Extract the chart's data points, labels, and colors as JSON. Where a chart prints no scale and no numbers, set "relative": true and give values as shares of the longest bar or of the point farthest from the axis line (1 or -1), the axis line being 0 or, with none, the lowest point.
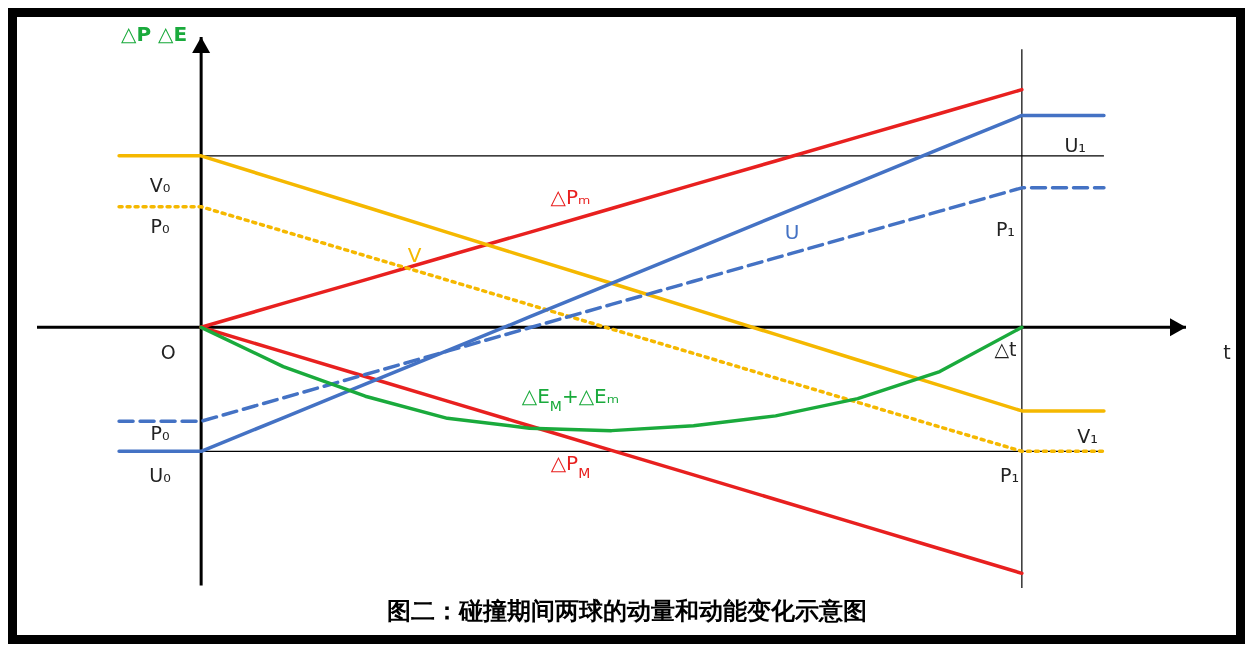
{
  "chart_data": {
    "type": "line",
    "relative": true,
    "title": "图二：碰撞期间两球的动量和动能变化示意图",
    "ylabel": "△P  △E",
    "tick_labels": false,
    "marker": "none",
    "categories": [
      null,
      null,
      null,
      null,
      null,
      null,
      null,
      null,
      null,
      null,
      null,
      null,
      null
    ],
    "series": [
      {
        "name": "△Pₘ",
        "color": "#e8201f",
        "line_style": "solid",
        "values": [
          null,
          0,
          0.097,
          0.193,
          0.29,
          0.386,
          0.483,
          0.58,
          0.676,
          0.773,
          0.869,
          0.966,
          null
        ]
      },
      {
        "name": "△P$_{M}$",
        "color": "#e8201f",
        "line_style": "solid",
        "values": [
          null,
          0,
          -0.1,
          -0.2,
          -0.3,
          -0.4,
          -0.5,
          -0.6,
          -0.7,
          -0.8,
          -0.9,
          -1,
          null
        ]
      },
      {
        "color": "#f5b800",
        "line_style": "solid",
        "values": [
          0.697,
          0.697,
          0.593,
          0.49,
          0.386,
          0.282,
          0.179,
          0.075,
          -0.029,
          -0.133,
          -0.236,
          -0.34,
          -0.34
        ]
      },
      {
        "name": "V",
        "color": "#f5b800",
        "line_style": "dotted",
        "values": [
          0.49,
          0.49,
          0.391,
          0.291,
          0.192,
          0.092,
          -0.007,
          -0.106,
          -0.206,
          -0.305,
          -0.405,
          -0.504,
          -0.504
        ]
      },
      {
        "color": "#4472c4",
        "line_style": "solid",
        "values": [
          -0.504,
          -0.504,
          -0.368,
          -0.231,
          -0.095,
          0.042,
          0.179,
          0.315,
          0.452,
          0.588,
          0.725,
          0.861,
          0.861
        ]
      },
      {
        "name": "U",
        "color": "#4472c4",
        "line_style": "dashed",
        "values": [
          -0.382,
          -0.382,
          -0.287,
          -0.192,
          -0.097,
          -0.002,
          0.093,
          0.187,
          0.282,
          0.377,
          0.472,
          0.567,
          0.567
        ]
      },
      {
        "name": "△E$_{M}$+△Eₘ",
        "color": "#1aaa3c",
        "line_style": "solid",
        "values": [
          null,
          0,
          -0.16,
          -0.28,
          -0.37,
          -0.41,
          -0.42,
          -0.4,
          -0.36,
          -0.29,
          -0.18,
          0,
          null
        ]
      }
    ],
    "ref_lines": [
      {
        "axis": "y",
        "value": 0.697,
        "color": "#000000"
      },
      {
        "axis": "y",
        "value": -0.504,
        "color": "#000000"
      }
    ],
    "annotations": [
      "V₀",
      "P₀",
      "O",
      "P₀",
      "U₀",
      "P₁",
      "U₁",
      "△t",
      "V₁",
      "P₁",
      "t"
    ]
  }
}
